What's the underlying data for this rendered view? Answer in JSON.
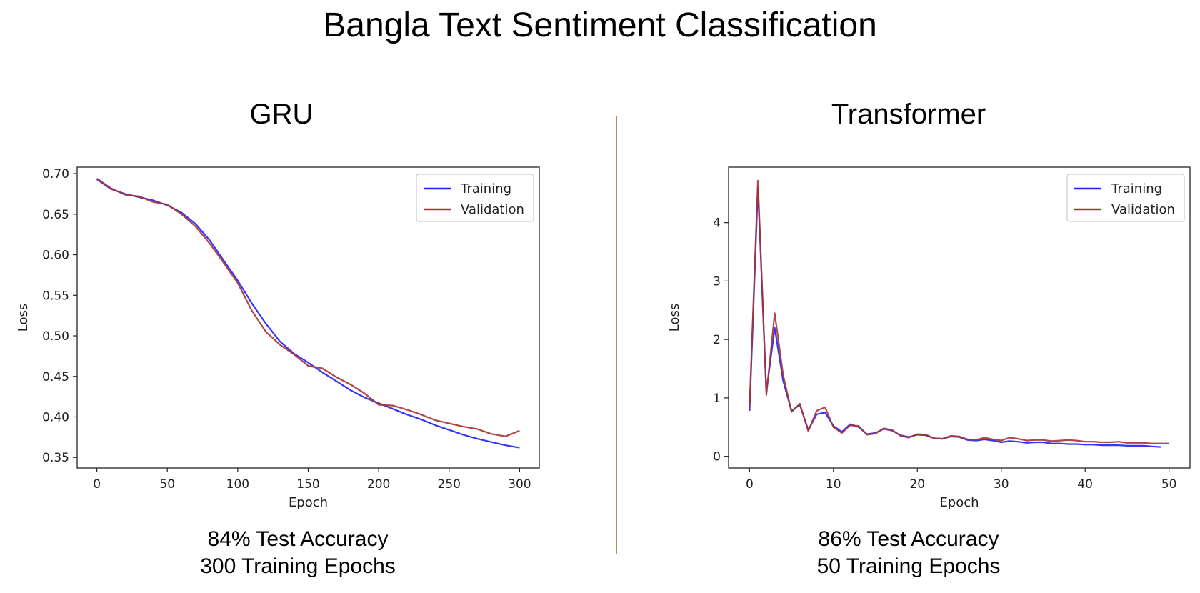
{
  "title": "Bangla Text Sentiment Classification",
  "panels": [
    {
      "heading": "GRU",
      "caption_line1": "84% Test Accuracy",
      "caption_line2": "300 Training Epochs"
    },
    {
      "heading": "Transformer",
      "caption_line1": "86% Test Accuracy",
      "caption_line2": "50 Training Epochs"
    }
  ],
  "colors": {
    "training": "#1f1fff",
    "validation": "#a83232",
    "divider": "#c8844a"
  },
  "chart_data": [
    {
      "type": "line",
      "xlabel": "Epoch",
      "ylabel": "Loss",
      "xlim": [
        -14,
        314
      ],
      "ylim": [
        0.337,
        0.708
      ],
      "xticks": [
        0,
        50,
        100,
        150,
        200,
        250,
        300
      ],
      "yticks": [
        0.35,
        0.4,
        0.45,
        0.5,
        0.55,
        0.6,
        0.65,
        0.7
      ],
      "grid": false,
      "legend_position": "top-right",
      "series": [
        {
          "name": "Training",
          "x": [
            0,
            10,
            20,
            30,
            40,
            50,
            60,
            70,
            80,
            90,
            100,
            110,
            120,
            130,
            140,
            150,
            160,
            170,
            180,
            190,
            200,
            210,
            220,
            230,
            240,
            250,
            260,
            270,
            280,
            290,
            300
          ],
          "y": [
            0.693,
            0.681,
            0.675,
            0.671,
            0.667,
            0.661,
            0.652,
            0.638,
            0.618,
            0.593,
            0.568,
            0.54,
            0.515,
            0.493,
            0.478,
            0.467,
            0.455,
            0.444,
            0.433,
            0.424,
            0.417,
            0.41,
            0.403,
            0.397,
            0.39,
            0.384,
            0.378,
            0.373,
            0.369,
            0.365,
            0.362
          ]
        },
        {
          "name": "Validation",
          "x": [
            0,
            10,
            20,
            30,
            40,
            50,
            60,
            70,
            80,
            90,
            100,
            110,
            120,
            130,
            140,
            150,
            160,
            170,
            180,
            190,
            200,
            210,
            220,
            230,
            240,
            250,
            260,
            270,
            280,
            290,
            300
          ],
          "y": [
            0.694,
            0.682,
            0.674,
            0.672,
            0.665,
            0.662,
            0.65,
            0.635,
            0.614,
            0.59,
            0.565,
            0.531,
            0.505,
            0.489,
            0.477,
            0.463,
            0.46,
            0.449,
            0.44,
            0.429,
            0.415,
            0.414,
            0.409,
            0.403,
            0.396,
            0.392,
            0.388,
            0.385,
            0.379,
            0.376,
            0.383
          ]
        }
      ]
    },
    {
      "type": "line",
      "xlabel": "Epoch",
      "ylabel": "Loss",
      "xlim": [
        -2.5,
        52.5
      ],
      "ylim": [
        -0.2,
        4.95
      ],
      "xticks": [
        0,
        10,
        20,
        30,
        40,
        50
      ],
      "yticks": [
        0,
        1,
        2,
        3,
        4
      ],
      "grid": false,
      "legend_position": "top-right",
      "series": [
        {
          "name": "Training",
          "x": [
            0,
            1,
            2,
            3,
            4,
            5,
            6,
            7,
            8,
            9,
            10,
            11,
            12,
            13,
            14,
            15,
            16,
            17,
            18,
            19,
            20,
            21,
            22,
            23,
            24,
            25,
            26,
            27,
            28,
            29,
            30,
            31,
            32,
            33,
            34,
            35,
            36,
            37,
            38,
            39,
            40,
            41,
            42,
            43,
            44,
            45,
            46,
            47,
            48,
            49
          ],
          "y": [
            0.78,
            4.6,
            1.1,
            2.2,
            1.3,
            0.78,
            0.88,
            0.45,
            0.72,
            0.75,
            0.52,
            0.42,
            0.55,
            0.5,
            0.38,
            0.4,
            0.47,
            0.44,
            0.36,
            0.33,
            0.37,
            0.36,
            0.31,
            0.3,
            0.34,
            0.33,
            0.28,
            0.27,
            0.29,
            0.27,
            0.24,
            0.26,
            0.25,
            0.23,
            0.24,
            0.24,
            0.22,
            0.22,
            0.21,
            0.21,
            0.2,
            0.2,
            0.19,
            0.19,
            0.19,
            0.18,
            0.18,
            0.18,
            0.17,
            0.16
          ]
        },
        {
          "name": "Validation",
          "x": [
            0,
            1,
            2,
            3,
            4,
            5,
            6,
            7,
            8,
            9,
            10,
            11,
            12,
            13,
            14,
            15,
            16,
            17,
            18,
            19,
            20,
            21,
            22,
            23,
            24,
            25,
            26,
            27,
            28,
            29,
            30,
            31,
            32,
            33,
            34,
            35,
            36,
            37,
            38,
            39,
            40,
            41,
            42,
            43,
            44,
            45,
            46,
            47,
            48,
            49,
            50
          ],
          "y": [
            0.85,
            4.72,
            1.05,
            2.45,
            1.4,
            0.76,
            0.9,
            0.43,
            0.78,
            0.84,
            0.5,
            0.4,
            0.53,
            0.52,
            0.37,
            0.39,
            0.48,
            0.45,
            0.35,
            0.32,
            0.38,
            0.37,
            0.31,
            0.3,
            0.35,
            0.34,
            0.29,
            0.28,
            0.32,
            0.29,
            0.27,
            0.32,
            0.3,
            0.27,
            0.28,
            0.28,
            0.26,
            0.27,
            0.28,
            0.27,
            0.25,
            0.25,
            0.24,
            0.24,
            0.25,
            0.23,
            0.23,
            0.23,
            0.22,
            0.22,
            0.22
          ]
        }
      ]
    }
  ]
}
